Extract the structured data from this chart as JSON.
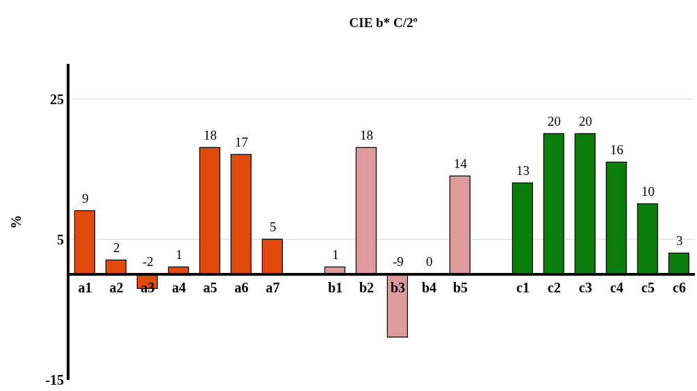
{
  "chart_data": {
    "type": "bar",
    "title": "CIE b* C/2º",
    "ylabel": "%",
    "categories": [
      "a1",
      "a2",
      "a3",
      "a4",
      "a5",
      "a6",
      "a7",
      null,
      "b1",
      "b2",
      "b3",
      "b4",
      "b5",
      null,
      "c1",
      "c2",
      "c3",
      "c4",
      "c5",
      "c6"
    ],
    "values": [
      9,
      2,
      -2,
      1,
      18,
      17,
      5,
      null,
      1,
      18,
      -9,
      0,
      14,
      null,
      13,
      20,
      20,
      16,
      10,
      3
    ],
    "colors": [
      "#e04a0a",
      "#e04a0a",
      "#e04a0a",
      "#e04a0a",
      "#e04a0a",
      "#e04a0a",
      "#e04a0a",
      null,
      "#dc9a9a",
      "#dc9a9a",
      "#dc9a9a",
      "#dc9a9a",
      "#dc9a9a",
      null,
      "#0a7d0a",
      "#0a7d0a",
      "#0a7d0a",
      "#0a7d0a",
      "#0a7d0a",
      "#0a7d0a"
    ],
    "ylim": [
      -15,
      30
    ],
    "yticks": [
      -15,
      5,
      25
    ],
    "grid": "y",
    "data_labels": true,
    "legend": false
  }
}
